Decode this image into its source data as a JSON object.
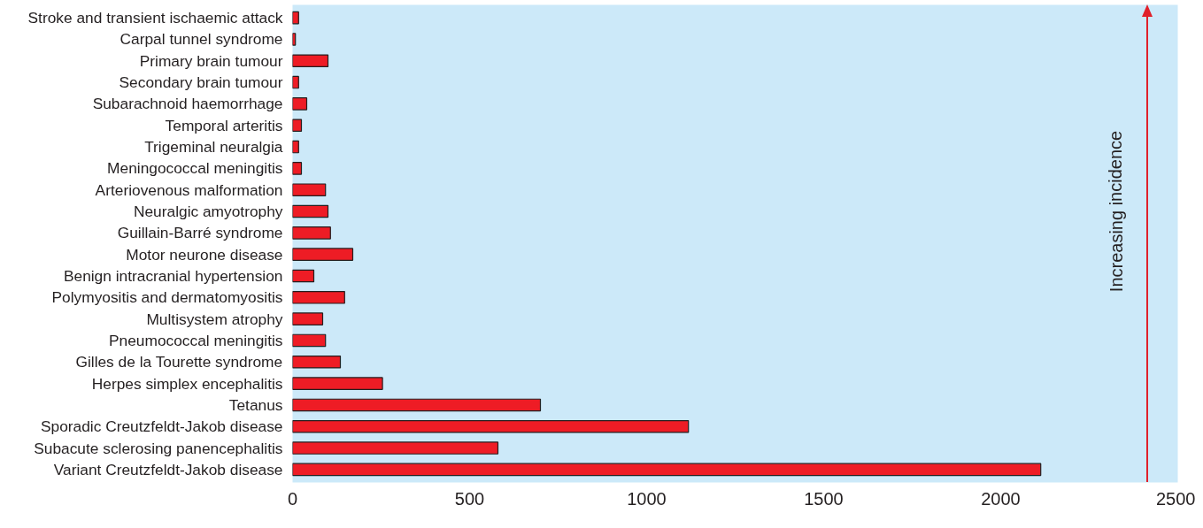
{
  "chart_data": {
    "type": "bar",
    "orientation": "horizontal",
    "categories": [
      "Stroke and transient ischaemic attack",
      "Carpal tunnel syndrome",
      "Primary brain tumour",
      "Secondary brain tumour",
      "Subarachnoid haemorrhage",
      "Temporal arteritis",
      "Trigeminal neuralgia",
      "Meningococcal meningitis",
      "Arteriovenous malformation",
      "Neuralgic amyotrophy",
      "Guillain-Barré syndrome",
      "Motor neurone disease",
      "Benign intracranial hypertension",
      "Polymyositis and dermatomyositis",
      "Multisystem atrophy",
      "Pneumococcal meningitis",
      "Gilles de la Tourette syndrome",
      "Herpes simplex encephalitis",
      "Tetanus",
      "Sporadic Creutzfeldt-Jakob disease",
      "Subacute sclerosing panencephalitis",
      "Variant Creutzfeldt-Jakob disease"
    ],
    "values": [
      17,
      8,
      100,
      17,
      40,
      25,
      17,
      25,
      93,
      100,
      107,
      170,
      60,
      147,
      85,
      93,
      135,
      254,
      700,
      1118,
      580,
      2113
    ],
    "color": "#ee1c25",
    "xlim": [
      0,
      2500
    ],
    "xticks": [
      0,
      500,
      1000,
      1500,
      2000,
      2500
    ],
    "grid": false,
    "annotations": [
      "Increasing incidence"
    ]
  }
}
